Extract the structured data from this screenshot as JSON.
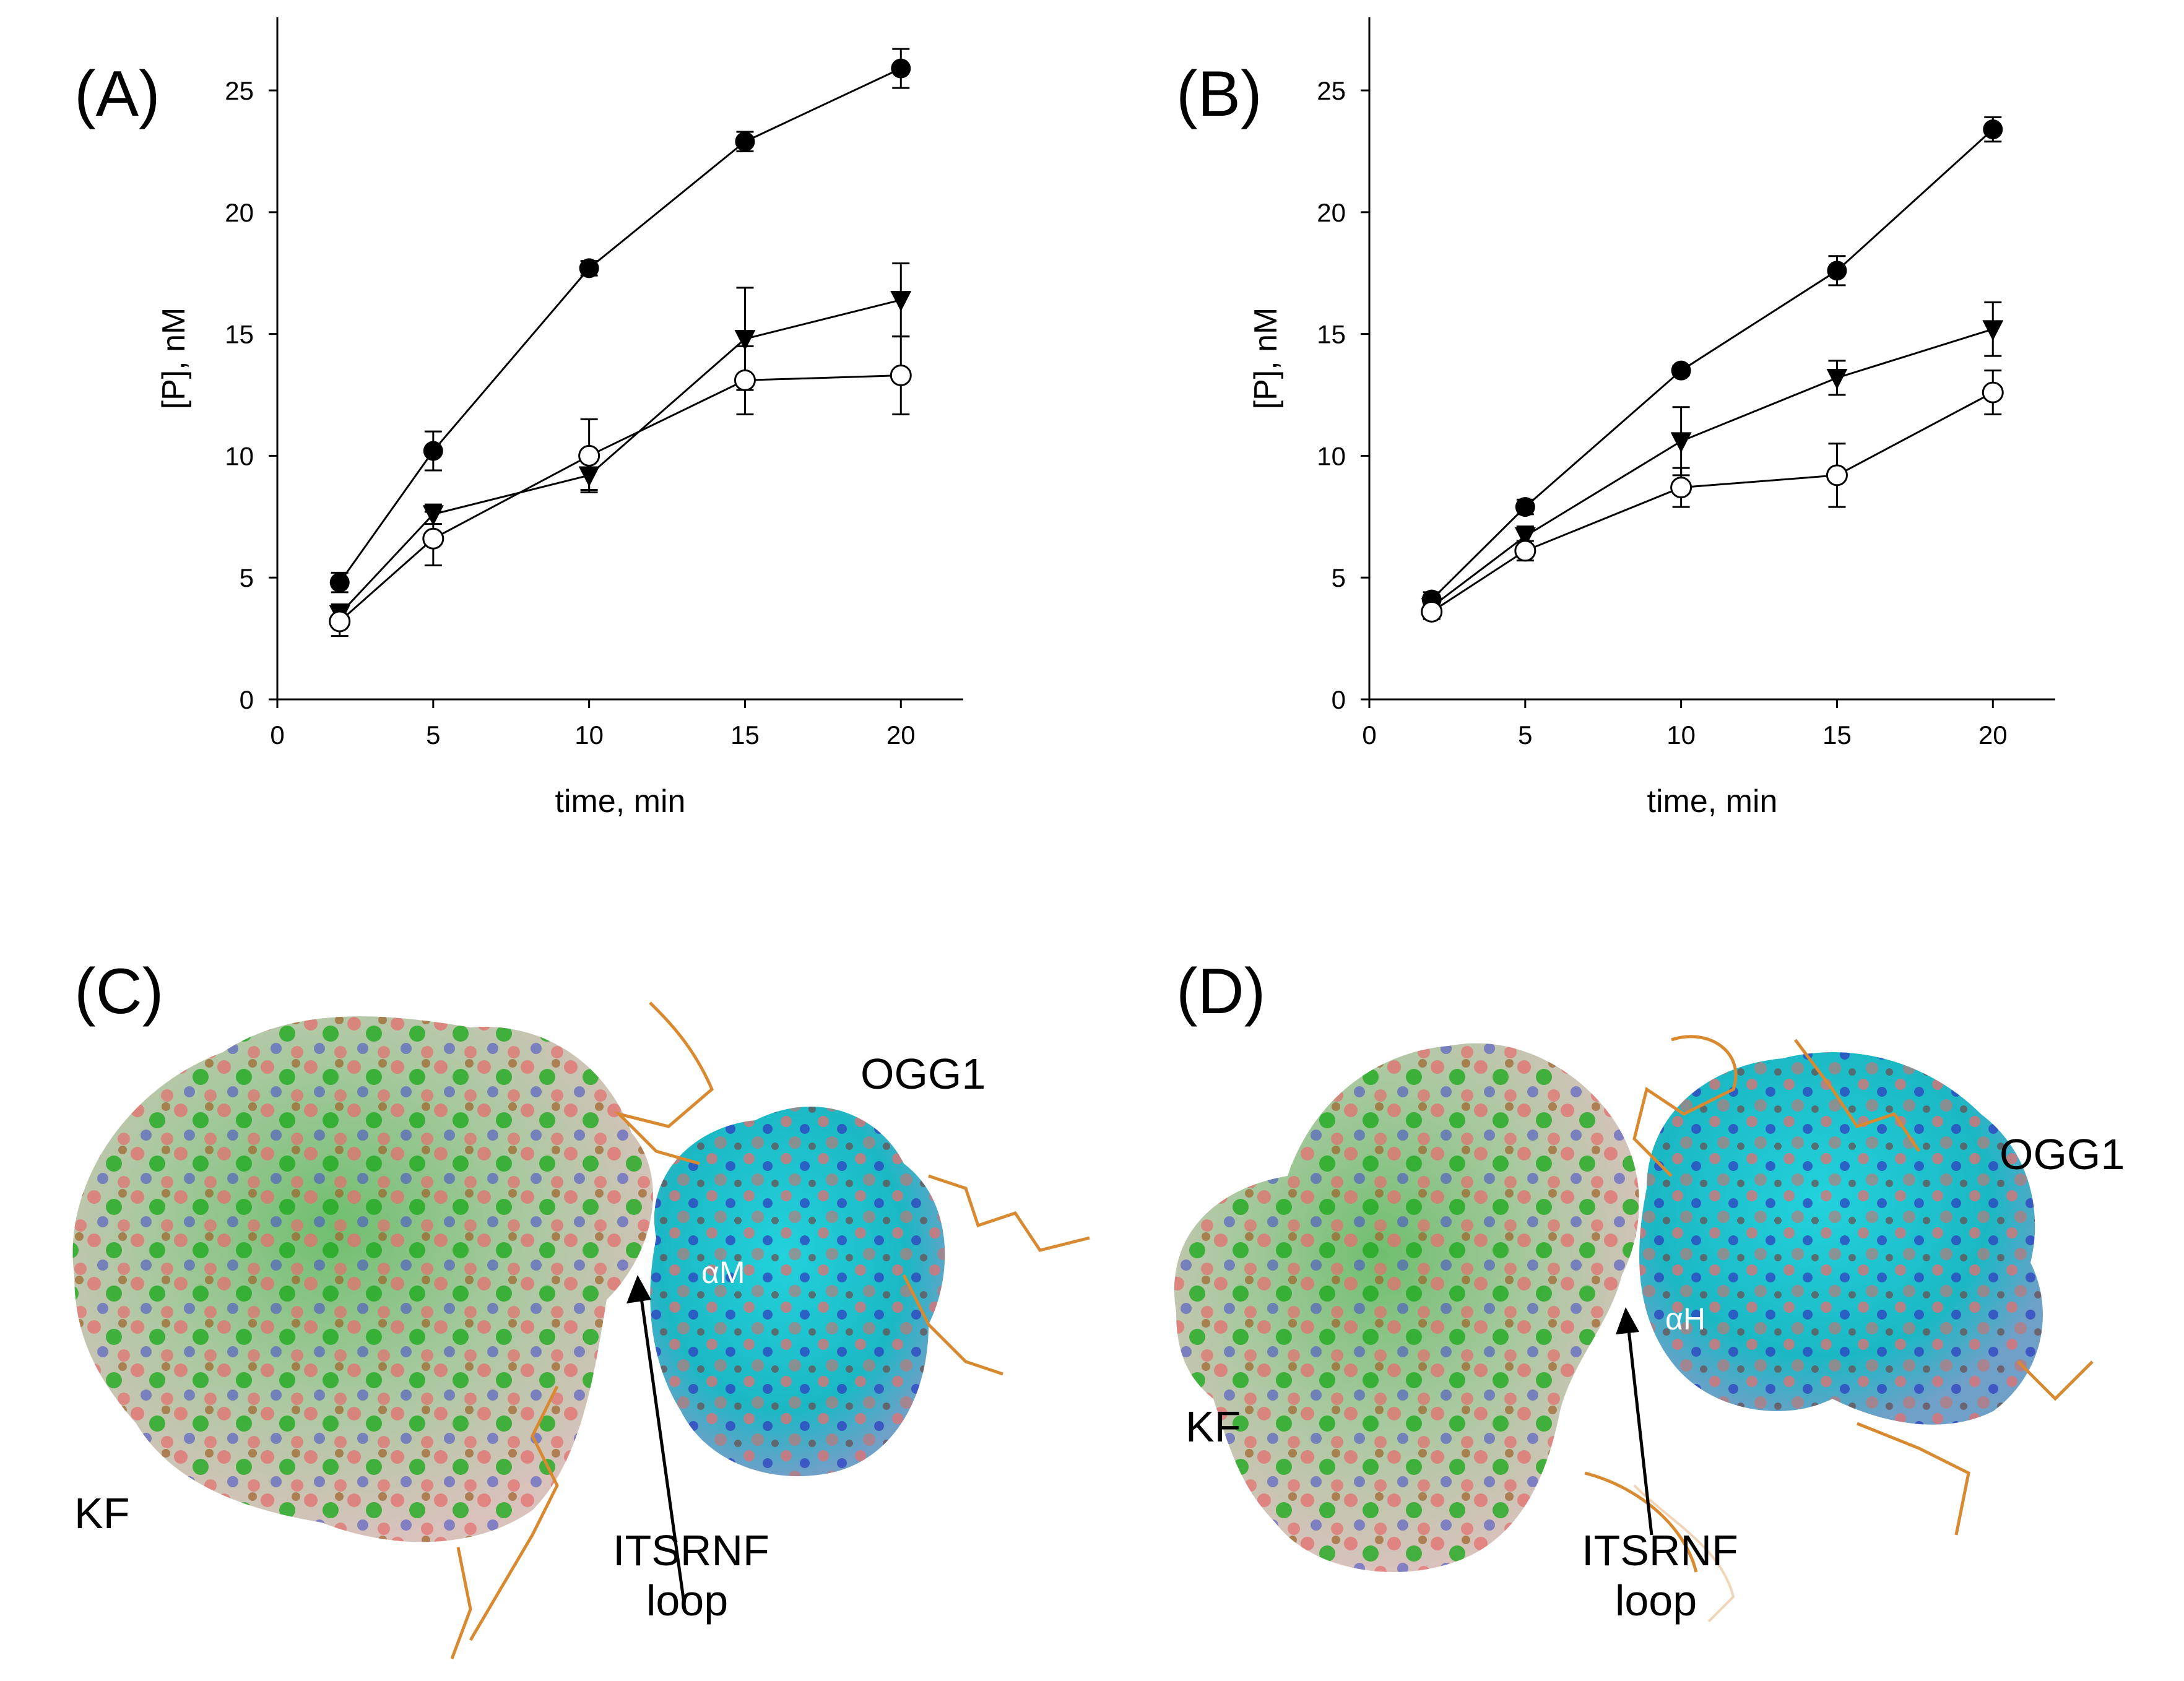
{
  "panels": [
    {
      "label": "(A)"
    },
    {
      "label": "(B)"
    },
    {
      "label": "(C)"
    },
    {
      "label": "(D)"
    }
  ],
  "chart_data": [
    {
      "type": "line",
      "panel": "(A)",
      "title": "",
      "xlabel": "time, min",
      "ylabel": "[P], nM",
      "xlim": [
        0,
        22
      ],
      "ylim": [
        0,
        28
      ],
      "xticks": [
        0,
        5,
        10,
        15,
        20
      ],
      "yticks": [
        0,
        5,
        10,
        15,
        20,
        25
      ],
      "x": [
        2,
        5,
        10,
        15,
        20
      ],
      "series": [
        {
          "marker": "filled-circle",
          "values": [
            4.8,
            10.2,
            17.7,
            22.9,
            25.9
          ],
          "errors": [
            0.4,
            0.8,
            0.3,
            0.4,
            0.8
          ]
        },
        {
          "marker": "filled-triangle",
          "values": [
            3.5,
            7.6,
            9.2,
            14.8,
            16.4
          ],
          "errors": [
            0.4,
            0.4,
            0.6,
            2.1,
            1.5
          ]
        },
        {
          "marker": "open-circle",
          "values": [
            3.2,
            6.6,
            10.0,
            13.1,
            13.3
          ],
          "errors": [
            0.6,
            1.1,
            1.5,
            1.4,
            1.6
          ]
        }
      ]
    },
    {
      "type": "line",
      "panel": "(B)",
      "title": "",
      "xlabel": "time, min",
      "ylabel": "[P], nM",
      "xlim": [
        0,
        22
      ],
      "ylim": [
        0,
        28
      ],
      "xticks": [
        0,
        5,
        10,
        15,
        20
      ],
      "yticks": [
        0,
        5,
        10,
        15,
        20,
        25
      ],
      "x": [
        2,
        5,
        10,
        15,
        20
      ],
      "series": [
        {
          "marker": "filled-circle",
          "values": [
            4.1,
            7.9,
            13.5,
            17.6,
            23.4
          ],
          "errors": [
            0.3,
            0.3,
            0.2,
            0.6,
            0.5
          ]
        },
        {
          "marker": "filled-triangle",
          "values": [
            3.8,
            6.7,
            10.6,
            13.2,
            15.2
          ],
          "errors": [
            0.3,
            0.4,
            1.4,
            0.7,
            1.1
          ]
        },
        {
          "marker": "open-circle",
          "values": [
            3.6,
            6.1,
            8.7,
            9.2,
            12.6
          ],
          "errors": [
            0.3,
            0.4,
            0.8,
            1.3,
            0.9
          ]
        }
      ]
    }
  ],
  "structures": {
    "c": {
      "kf": "KF",
      "ogg1": "OGG1",
      "helix": "αM",
      "loop_line1": "ITSRNF",
      "loop_line2": "loop"
    },
    "d": {
      "kf": "KF",
      "ogg1": "OGG1",
      "helix": "αH",
      "loop_line1": "ITSRNF",
      "loop_line2": "loop"
    }
  },
  "colors": {
    "kf_surface": "#9cc79a",
    "kf_green": "#22b022",
    "ogg1_surface": "#1ec8d2",
    "oxygen_red": "#e06a6a",
    "nitrogen_blue": "#3344cc",
    "dna_orange": "#d98a30"
  }
}
